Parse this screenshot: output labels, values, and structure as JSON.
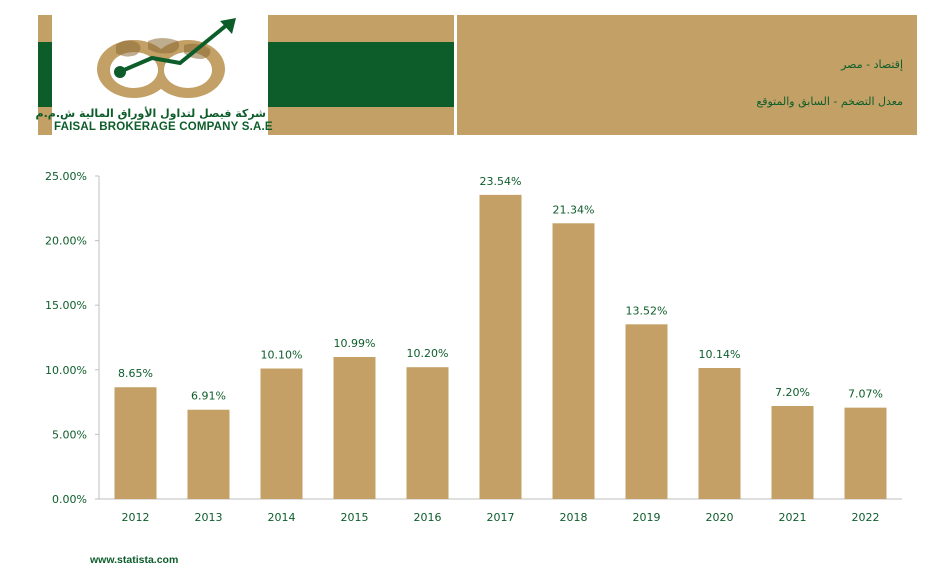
{
  "header": {
    "title": "إقتصاد - مصر",
    "subtitle": "معدل التضخم - السابق والمتوقع",
    "logo_arabic": "شركة فيصل لتداول الأوراق المالية ش.م.م",
    "logo_english": "FAISAL BROKERAGE COMPANY S.A.E"
  },
  "colors": {
    "brand_green": "#0d5d2a",
    "gold": "#c3a066",
    "bar": "#c4a066"
  },
  "chart_data": {
    "type": "bar",
    "categories": [
      "2012",
      "2013",
      "2014",
      "2015",
      "2016",
      "2017",
      "2018",
      "2019",
      "2020",
      "2021",
      "2022"
    ],
    "values": [
      8.65,
      6.91,
      10.1,
      10.99,
      10.2,
      23.54,
      21.34,
      13.52,
      10.14,
      7.2,
      7.07
    ],
    "data_labels": [
      "8.65%",
      "6.91%",
      "10.10%",
      "10.99%",
      "10.20%",
      "23.54%",
      "21.34%",
      "13.52%",
      "10.14%",
      "7.20%",
      "7.07%"
    ],
    "y_ticks": [
      0,
      5,
      10,
      15,
      20,
      25
    ],
    "y_tick_labels": [
      "0.00%",
      "5.00%",
      "10.00%",
      "15.00%",
      "20.00%",
      "25.00%"
    ],
    "ylim": [
      0,
      25
    ],
    "grid": false,
    "legend": "none"
  },
  "footer": {
    "source": "www.statista.com"
  }
}
